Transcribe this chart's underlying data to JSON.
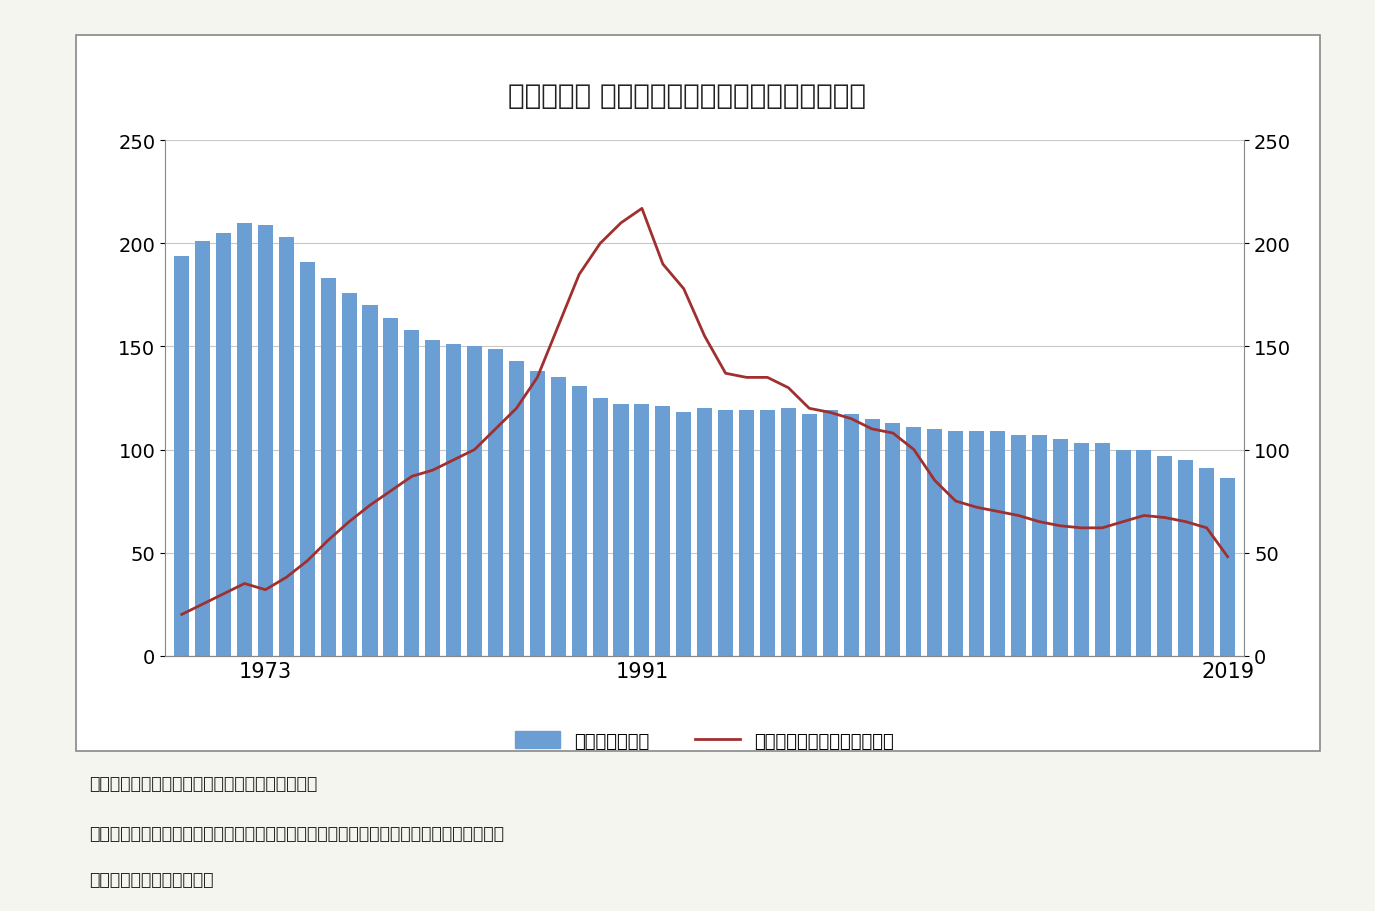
{
  "title": "『図表２』 出生数と生命保険新規契約高の推移",
  "years": [
    1969,
    1970,
    1971,
    1972,
    1973,
    1974,
    1975,
    1976,
    1977,
    1978,
    1979,
    1980,
    1981,
    1982,
    1983,
    1984,
    1985,
    1986,
    1987,
    1988,
    1989,
    1990,
    1991,
    1992,
    1993,
    1994,
    1995,
    1996,
    1997,
    1998,
    1999,
    2000,
    2001,
    2002,
    2003,
    2004,
    2005,
    2006,
    2007,
    2008,
    2009,
    2010,
    2011,
    2012,
    2013,
    2014,
    2015,
    2016,
    2017,
    2018,
    2019
  ],
  "births": [
    194,
    201,
    205,
    210,
    209,
    203,
    191,
    183,
    176,
    170,
    164,
    158,
    153,
    151,
    150,
    149,
    143,
    138,
    135,
    131,
    125,
    122,
    122,
    121,
    118,
    120,
    119,
    119,
    119,
    120,
    117,
    119,
    117,
    115,
    113,
    111,
    110,
    109,
    109,
    109,
    107,
    107,
    105,
    103,
    103,
    100,
    100,
    97,
    95,
    91,
    86
  ],
  "insurance": [
    20,
    25,
    30,
    35,
    32,
    38,
    46,
    56,
    65,
    73,
    80,
    87,
    90,
    95,
    100,
    110,
    120,
    135,
    160,
    185,
    200,
    210,
    217,
    190,
    178,
    155,
    137,
    135,
    135,
    130,
    120,
    118,
    115,
    110,
    108,
    100,
    85,
    75,
    72,
    70,
    68,
    65,
    63,
    62,
    62,
    65,
    68,
    67,
    65,
    62,
    48
  ],
  "bar_color": "#6b9fd4",
  "line_color": "#a03030",
  "ylim": [
    0,
    250
  ],
  "yticks": [
    0,
    50,
    100,
    150,
    200,
    250
  ],
  "xlabel_ticks": [
    1973,
    1991,
    2019
  ],
  "legend_bar_label": "出生数（万人）",
  "legend_line_label": "生命保険新規契約高（兆円）",
  "note1": "注１：出生数は厚生労働省の人口動態統計より。",
  "note2": "注２：生命保険新規契約高は生命保険協会作成の生命保険事業概況より、個人保険の新規",
  "note3": "　　　契約の金額を抄出。",
  "background_color": "#f5f5f0",
  "chart_bg": "#ffffff",
  "grid_color": "#c8c8c8",
  "border_color": "#888888"
}
